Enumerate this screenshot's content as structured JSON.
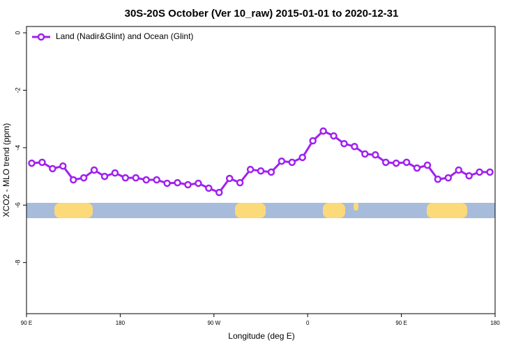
{
  "chart_data": {
    "type": "line",
    "title": "30S-20S October (Ver 10_raw)   2015-01-01 to 2020-12-31",
    "xlabel": "Longitude (deg E)",
    "ylabel": "XCO2 - MLO trend (ppm)",
    "x": [
      95,
      105,
      115,
      125,
      135,
      145,
      155,
      165,
      175,
      185,
      195,
      205,
      215,
      225,
      235,
      245,
      255,
      265,
      275,
      285,
      295,
      305,
      315,
      325,
      335,
      345,
      355,
      365,
      375,
      385,
      395,
      405,
      415,
      425,
      435,
      445,
      455,
      465,
      475,
      485,
      495,
      505,
      515,
      525,
      535
    ],
    "series": [
      {
        "name": "Land (Nadir&Glint) and Ocean (Glint)",
        "color": "#a020f0",
        "values": [
          -4.54,
          -4.51,
          -4.73,
          -4.64,
          -5.12,
          -5.05,
          -4.78,
          -5.0,
          -4.88,
          -5.05,
          -5.05,
          -5.12,
          -5.12,
          -5.24,
          -5.22,
          -5.29,
          -5.24,
          -5.41,
          -5.56,
          -5.07,
          -5.22,
          -4.76,
          -4.81,
          -4.85,
          -4.47,
          -4.51,
          -4.34,
          -3.76,
          -3.42,
          -3.59,
          -3.86,
          -3.96,
          -4.22,
          -4.25,
          -4.51,
          -4.54,
          -4.51,
          -4.71,
          -4.61,
          -5.1,
          -5.05,
          -4.78,
          -4.98,
          -4.85,
          -4.85
        ]
      }
    ],
    "xlim": [
      90,
      540
    ],
    "xticks": [
      {
        "value": 90,
        "label": "90 E"
      },
      {
        "value": 180,
        "label": "180"
      },
      {
        "value": 270,
        "label": "90 W"
      },
      {
        "value": 360,
        "label": "0"
      },
      {
        "value": 450,
        "label": "90 E"
      },
      {
        "value": 540,
        "label": "180"
      }
    ],
    "ylim": [
      -9.78,
      0.22
    ],
    "yticks": [
      0,
      -2,
      -4,
      -6,
      -8
    ],
    "legend": "top-left"
  }
}
